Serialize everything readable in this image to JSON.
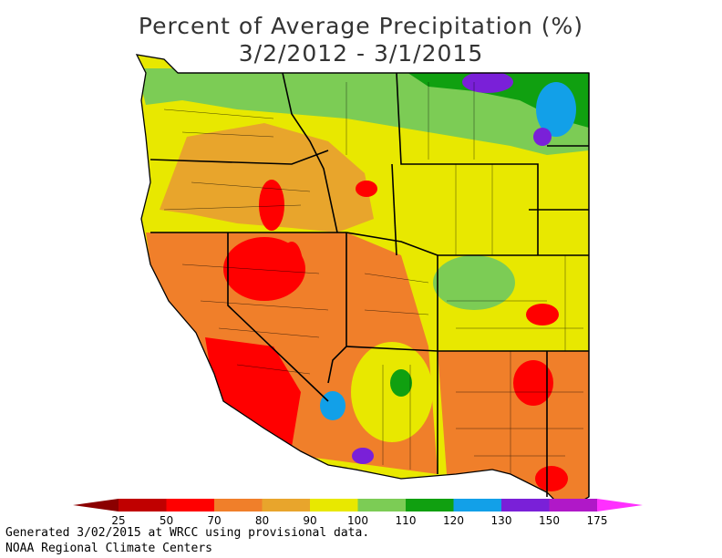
{
  "title": {
    "line1": "Percent of Average Precipitation (%)",
    "line2": "3/2/2012 - 3/1/2015"
  },
  "legend": {
    "colors": [
      "#8b0000",
      "#c00000",
      "#ff0000",
      "#f07f2a",
      "#e8a52c",
      "#e8e800",
      "#7ccc55",
      "#10a010",
      "#12a0e8",
      "#7a20d8",
      "#b018c8",
      "#ff30ff"
    ],
    "ticks": [
      "25",
      "50",
      "70",
      "80",
      "90",
      "100",
      "110",
      "120",
      "130",
      "150",
      "175"
    ]
  },
  "footer": {
    "line1": "Generated 3/02/2015 at WRCC using provisional data.",
    "line2": "NOAA Regional Climate Centers"
  }
}
